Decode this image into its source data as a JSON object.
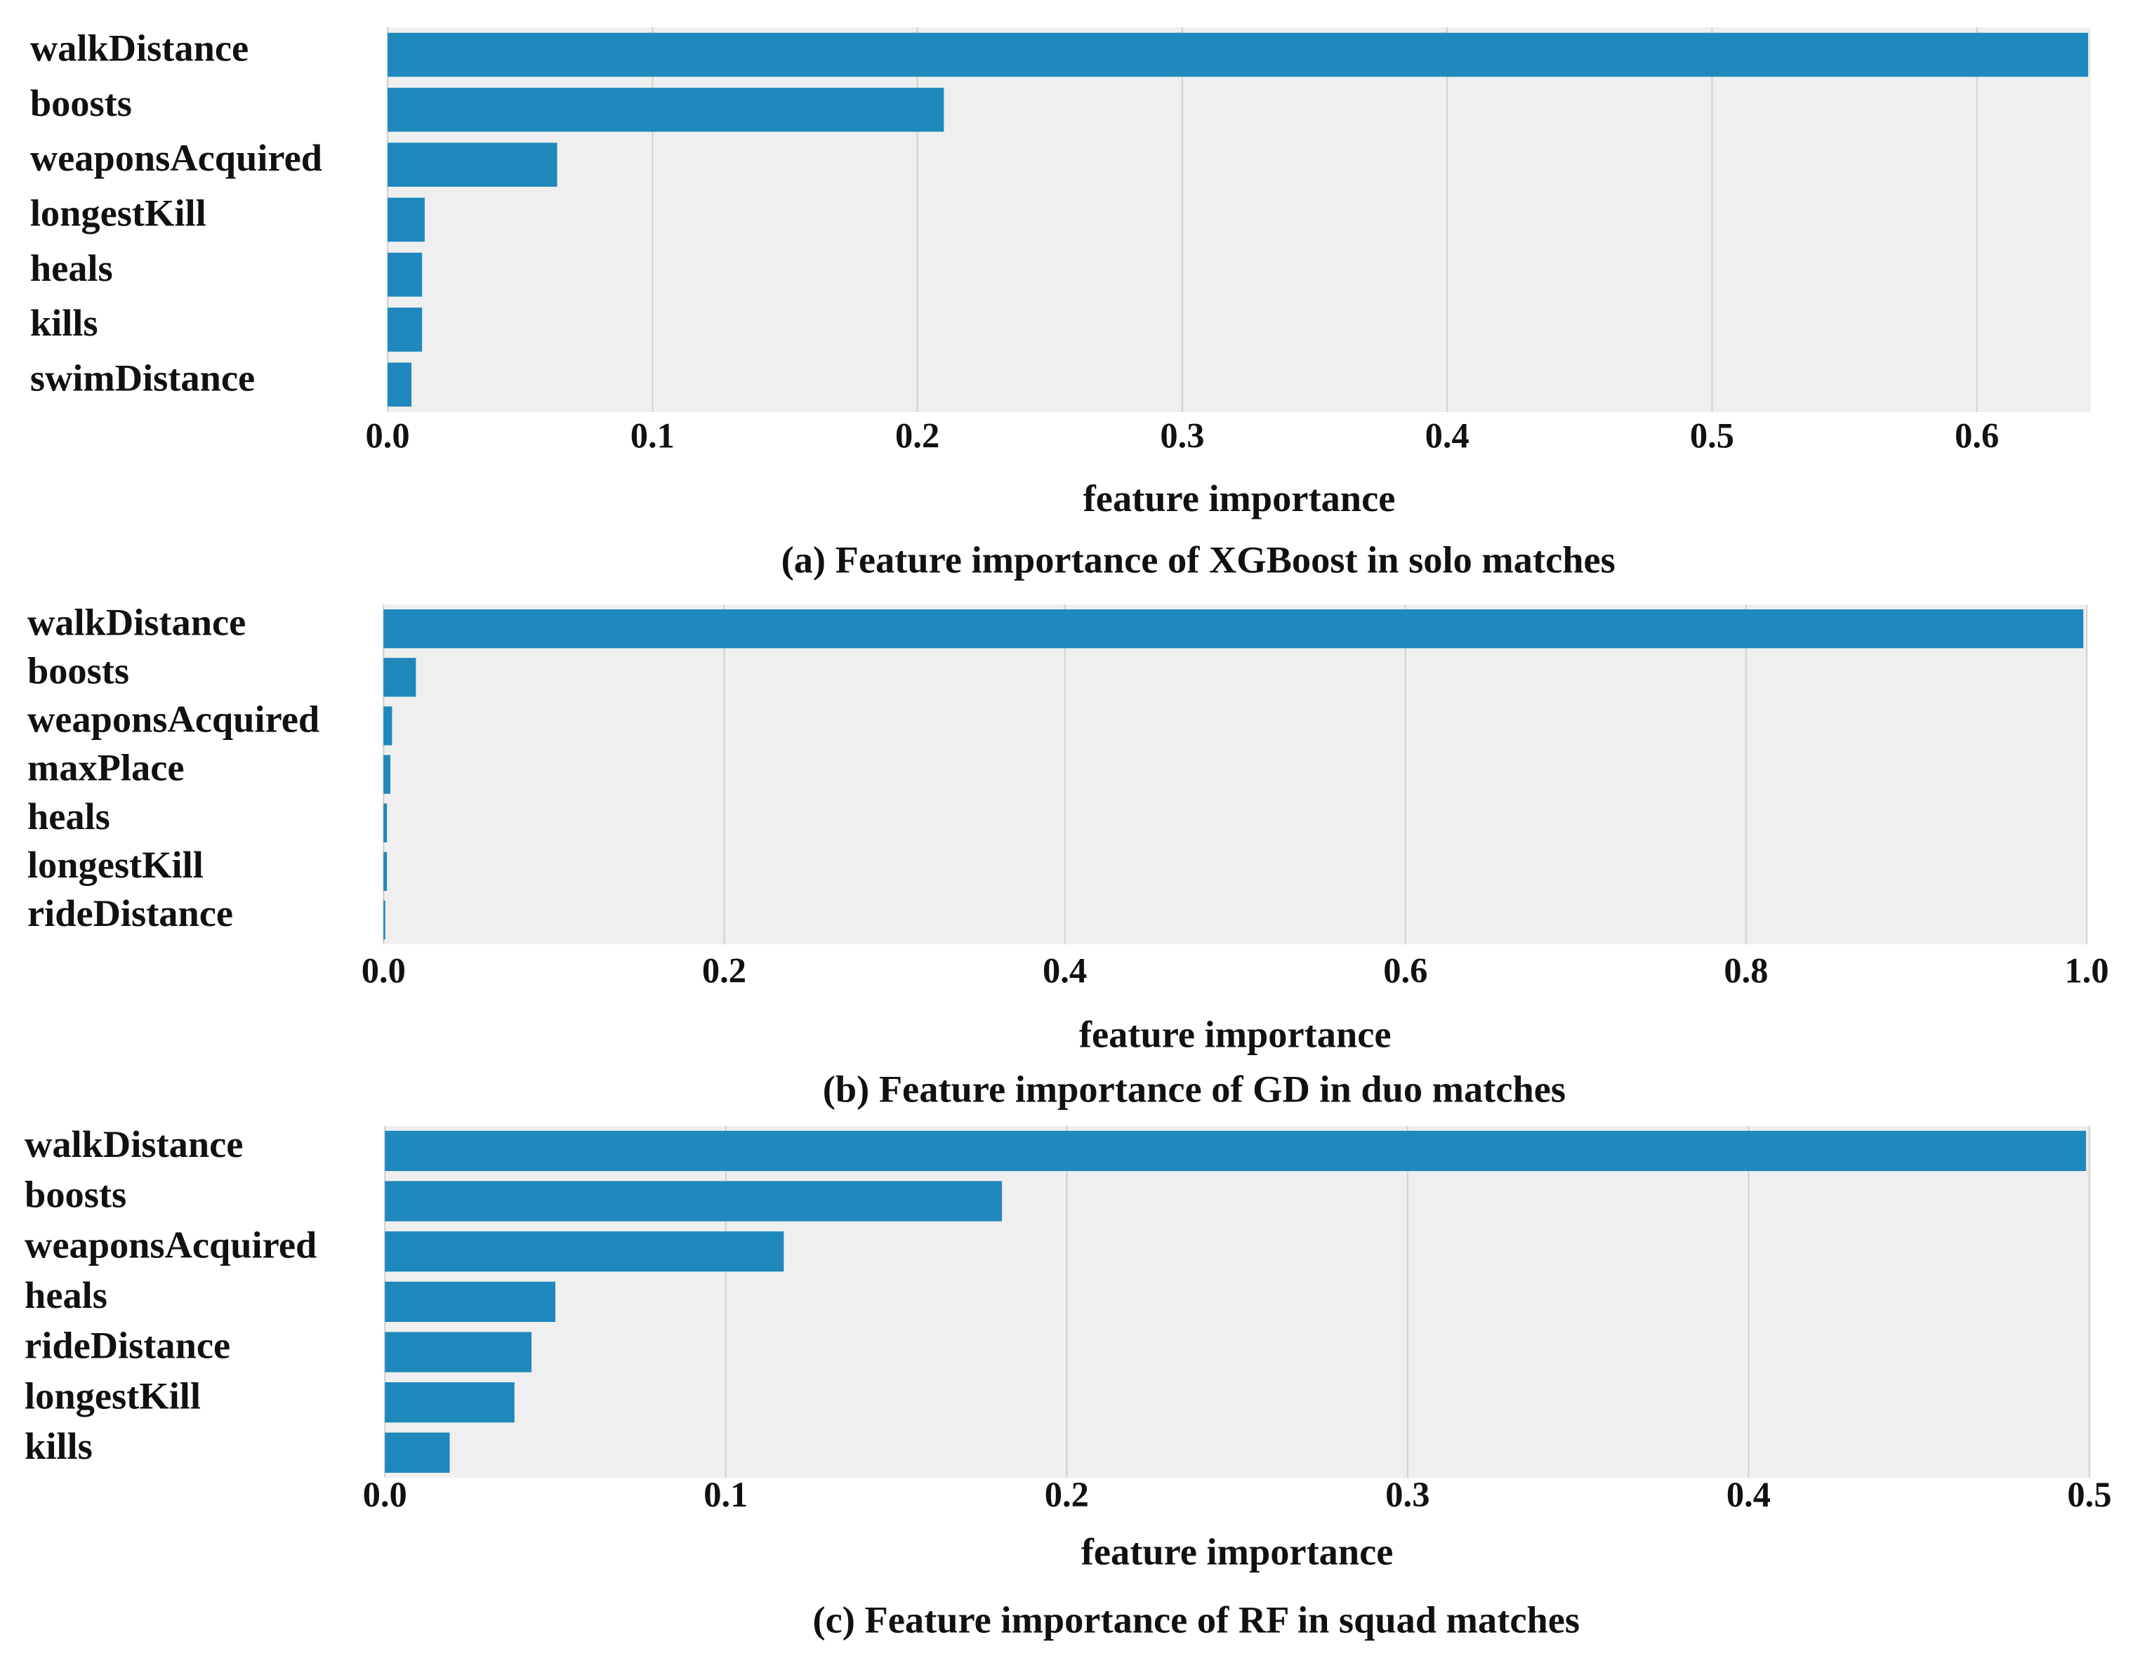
{
  "chart_data": [
    {
      "type": "bar",
      "orientation": "horizontal",
      "color": "#1f88bc",
      "grid": true,
      "categories": [
        "walkDistance",
        "boosts",
        "weaponsAcquired",
        "longestKill",
        "heals",
        "kills",
        "swimDistance"
      ],
      "values": [
        0.642,
        0.21,
        0.064,
        0.014,
        0.013,
        0.013,
        0.009
      ],
      "xlim": [
        0,
        0.643
      ],
      "xticks": [
        {
          "value": 0,
          "label": "0.0"
        },
        0.1,
        0.2,
        0.3,
        0.4,
        0.5,
        0.6
      ],
      "xlabel": "feature importance",
      "caption": "(a) Feature importance of XGBoost in solo matches"
    },
    {
      "type": "bar",
      "orientation": "horizontal",
      "color": "#1f88bc",
      "grid": true,
      "categories": [
        "walkDistance",
        "boosts",
        "weaponsAcquired",
        "maxPlace",
        "heals",
        "longestKill",
        "rideDistance"
      ],
      "values": [
        0.998,
        0.019,
        0.005,
        0.004,
        0.002,
        0.002,
        0.001
      ],
      "xlim": [
        0,
        1.0
      ],
      "xticks": [
        {
          "value": 0,
          "label": "0.0"
        },
        0.2,
        0.4,
        0.6,
        0.8,
        {
          "value": 1,
          "label": "1.0"
        }
      ],
      "xlabel": "feature importance",
      "caption": "(b) Feature importance of GD in duo matches"
    },
    {
      "type": "bar",
      "orientation": "horizontal",
      "color": "#1f88bc",
      "grid": true,
      "categories": [
        "walkDistance",
        "boosts",
        "weaponsAcquired",
        "heals",
        "rideDistance",
        "longestKill",
        "kills"
      ],
      "values": [
        0.499,
        0.181,
        0.117,
        0.05,
        0.043,
        0.038,
        0.019
      ],
      "xlim": [
        0,
        0.5
      ],
      "xticks": [
        {
          "value": 0,
          "label": "0.0"
        },
        0.1,
        0.2,
        0.3,
        0.4,
        0.5
      ],
      "xlabel": "feature importance",
      "caption": "(c) Feature importance of RF in squad matches"
    }
  ]
}
